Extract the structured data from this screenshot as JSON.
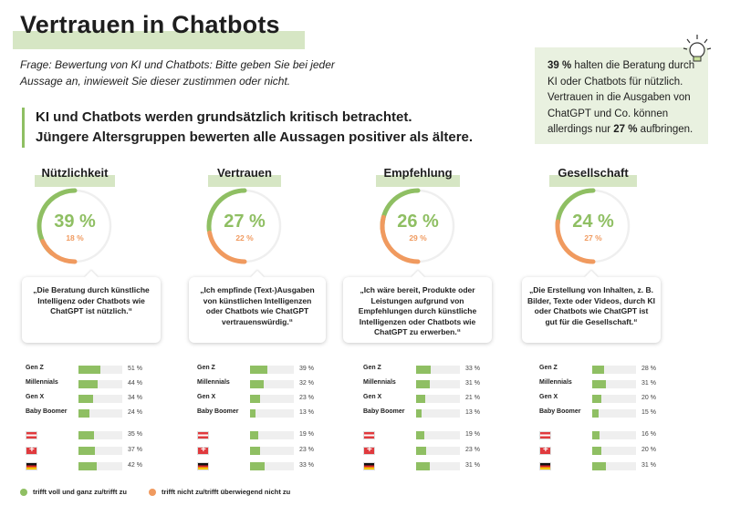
{
  "title": "Vertrauen in Chatbots",
  "question": "Frage: Bewertung von KI und Chatbots: Bitte geben Sie bei jeder Aussage an, inwieweit Sie dieser zustimmen oder nicht.",
  "lead": {
    "line1": "KI und Chatbots werden grundsätzlich kritisch betrachtet.",
    "line2": "Jüngere Altersgruppen bewerten alle Aussagen positiver als ältere."
  },
  "infobox": {
    "pct1": "39 %",
    "text1": "halten die Beratung durch KI oder Chatbots für nützlich. Vertrauen in die Ausgaben von ChatGPT und Co. können allerdings nur",
    "pct2": "27 %",
    "text2": "aufbringen."
  },
  "legend": {
    "agree": "trifft voll und ganz zu/trifft zu",
    "disagree": "trifft nicht zu/trifft überwiegend nicht zu"
  },
  "colors": {
    "agree": "#8fbf63",
    "disagree": "#f09a5f",
    "track": "#efefef",
    "highlight": "#d6e6c4"
  },
  "groups": [
    "Gen Z",
    "Millennials",
    "Gen X",
    "Baby Boomer"
  ],
  "countries": [
    "flag-austria",
    "flag-switzerland",
    "flag-germany"
  ],
  "chart_data": [
    {
      "type": "bar",
      "title": "Nützlichkeit",
      "agree_pct": 39,
      "agree_label": "39 %",
      "disagree_pct": 18,
      "disagree_label": "18 %",
      "quote": "„Die Beratung durch künstliche Intelligenz oder Chatbots wie ChatGPT ist nützlich.“",
      "categories": [
        "Gen Z",
        "Millennials",
        "Gen X",
        "Baby Boomer"
      ],
      "values": [
        51,
        44,
        34,
        24
      ],
      "value_labels": [
        "51 %",
        "44 %",
        "34 %",
        "24 %"
      ],
      "country_values": [
        35,
        37,
        42
      ],
      "country_labels": [
        "35 %",
        "37 %",
        "42 %"
      ],
      "ylim": [
        0,
        100
      ]
    },
    {
      "type": "bar",
      "title": "Vertrauen",
      "agree_pct": 27,
      "agree_label": "27 %",
      "disagree_pct": 22,
      "disagree_label": "22 %",
      "quote": "„Ich empfinde (Text-)Ausgaben von künstlichen Intelligenzen oder Chatbots wie ChatGPT vertrauenswürdig.“",
      "categories": [
        "Gen Z",
        "Millennials",
        "Gen X",
        "Baby Boomer"
      ],
      "values": [
        39,
        32,
        23,
        13
      ],
      "value_labels": [
        "39 %",
        "32 %",
        "23 %",
        "13 %"
      ],
      "country_values": [
        19,
        23,
        33
      ],
      "country_labels": [
        "19 %",
        "23 %",
        "33 %"
      ],
      "ylim": [
        0,
        100
      ]
    },
    {
      "type": "bar",
      "title": "Empfehlung",
      "agree_pct": 26,
      "agree_label": "26 %",
      "disagree_pct": 29,
      "disagree_label": "29 %",
      "quote": "„Ich wäre bereit, Produkte oder Leistungen aufgrund von Empfehlungen durch künstliche Intelligenzen oder Chatbots wie ChatGPT zu erwerben.“",
      "categories": [
        "Gen Z",
        "Millennials",
        "Gen X",
        "Baby Boomer"
      ],
      "values": [
        33,
        31,
        21,
        13
      ],
      "value_labels": [
        "33 %",
        "31 %",
        "21 %",
        "13 %"
      ],
      "country_values": [
        19,
        23,
        31
      ],
      "country_labels": [
        "19 %",
        "23 %",
        "31 %"
      ],
      "ylim": [
        0,
        100
      ]
    },
    {
      "type": "bar",
      "title": "Gesellschaft",
      "agree_pct": 24,
      "agree_label": "24 %",
      "disagree_pct": 27,
      "disagree_label": "27 %",
      "quote": "„Die Erstellung von Inhalten, z. B. Bilder, Texte oder Videos, durch KI oder Chatbots wie ChatGPT ist gut für die Gesellschaft.“",
      "categories": [
        "Gen Z",
        "Millennials",
        "Gen X",
        "Baby Boomer"
      ],
      "values": [
        28,
        31,
        20,
        15
      ],
      "value_labels": [
        "28 %",
        "31 %",
        "20 %",
        "15 %"
      ],
      "country_values": [
        16,
        20,
        31
      ],
      "country_labels": [
        "16 %",
        "20 %",
        "31 %"
      ],
      "ylim": [
        0,
        100
      ]
    }
  ]
}
